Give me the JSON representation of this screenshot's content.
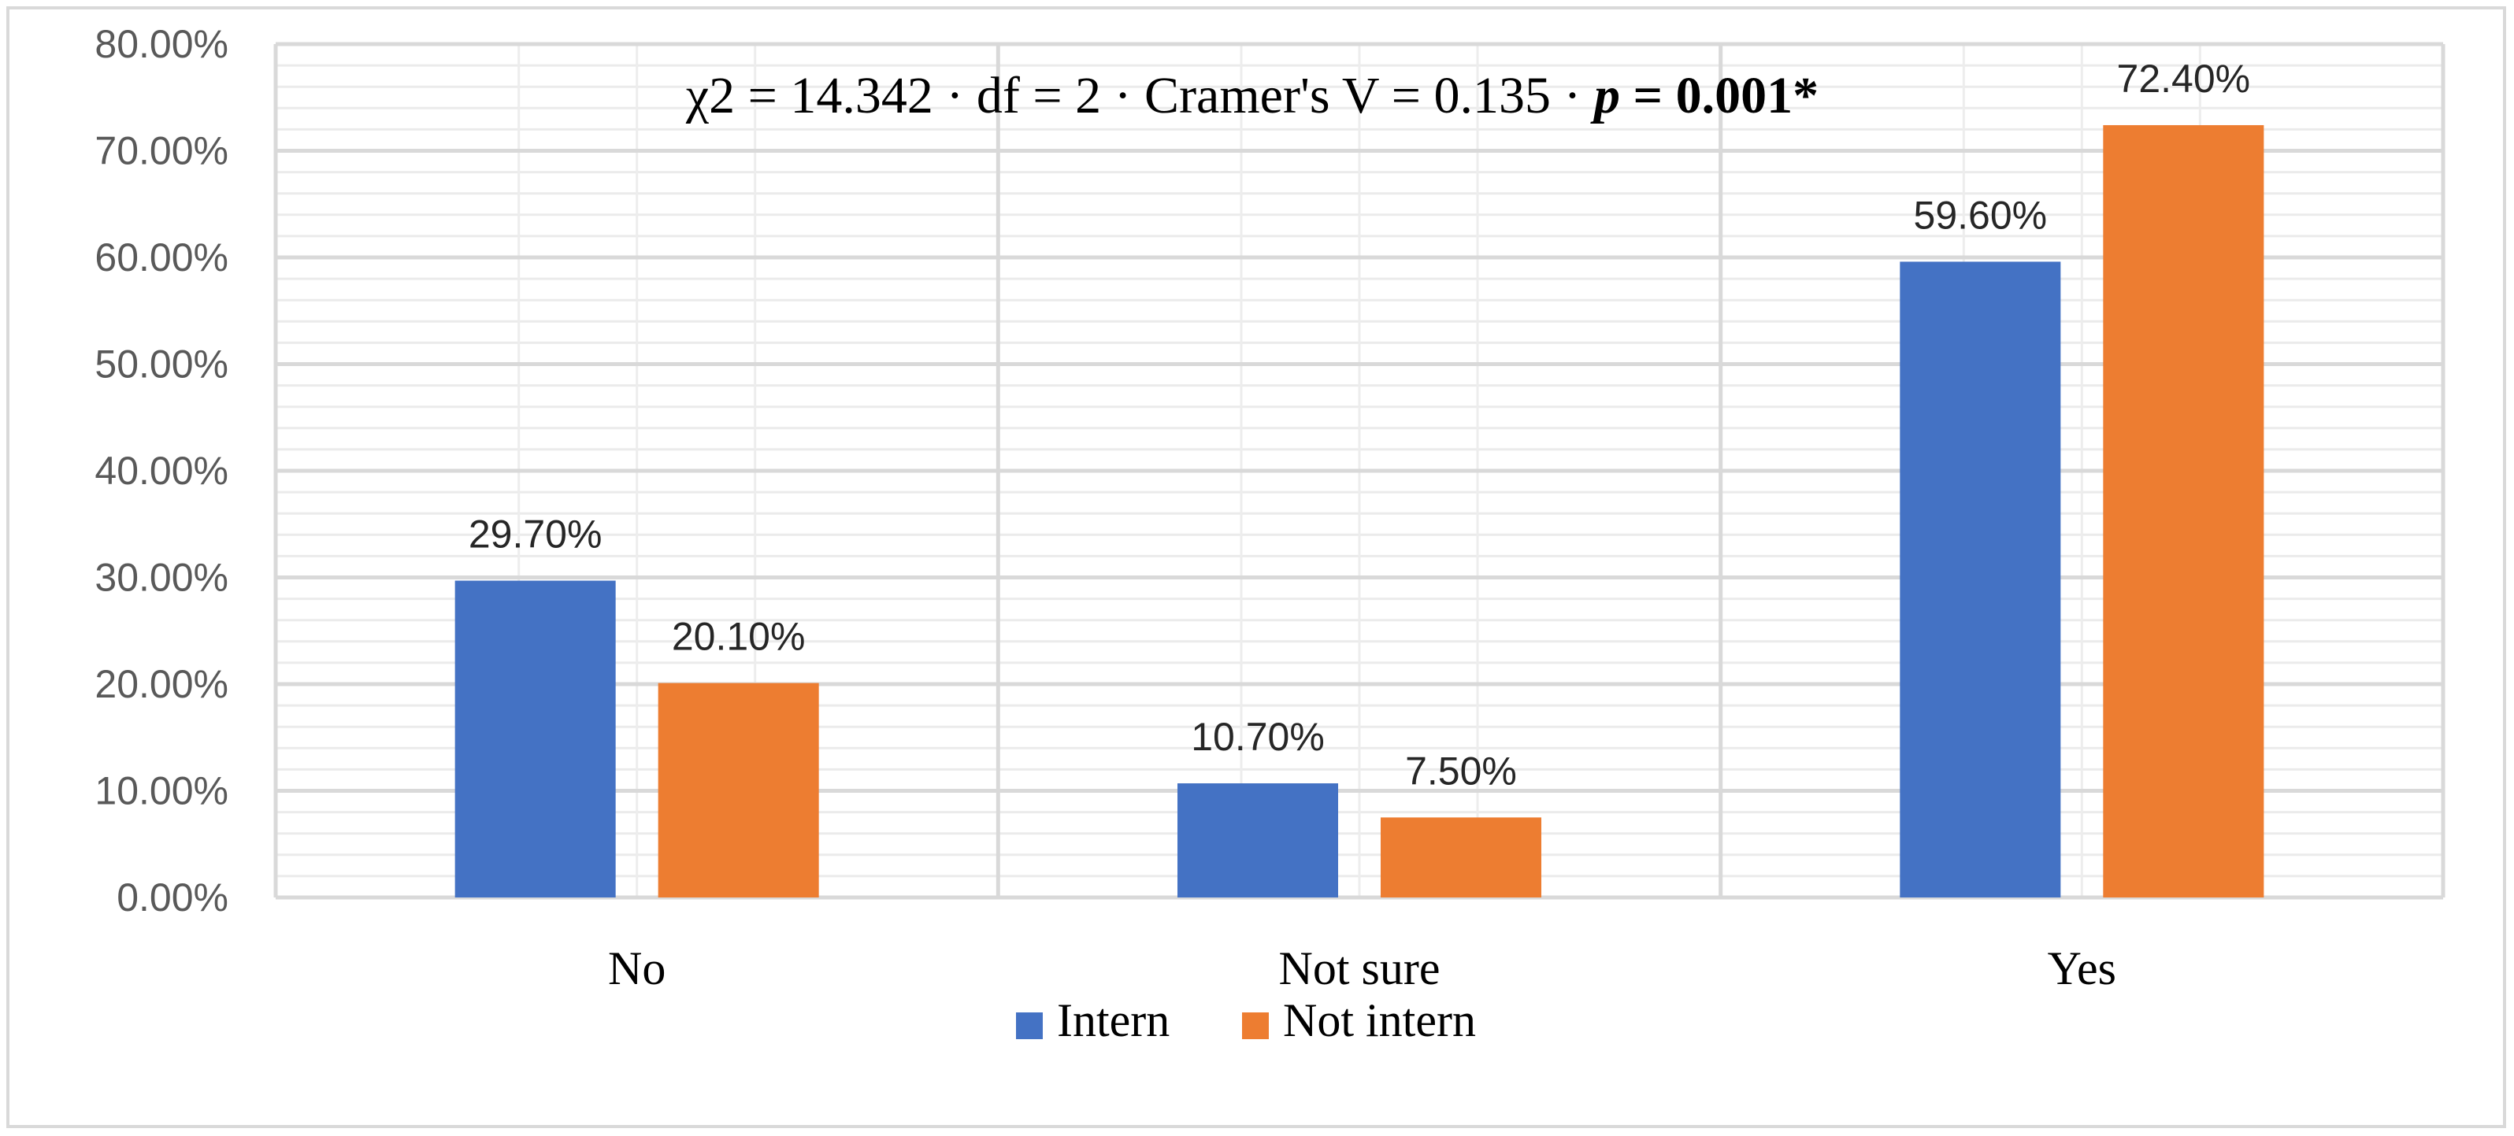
{
  "chart_data": {
    "type": "bar",
    "categories": [
      "No",
      "Not sure",
      "Yes"
    ],
    "series": [
      {
        "name": "Intern",
        "color": "#4472c4",
        "values": [
          29.7,
          10.7,
          59.6
        ],
        "labels": [
          "29.70%",
          "10.70%",
          "59.60%"
        ]
      },
      {
        "name": "Not intern",
        "color": "#ed7d31",
        "values": [
          20.1,
          7.5,
          72.4
        ],
        "labels": [
          "20.10%",
          "7.50%",
          "72.40%"
        ]
      }
    ],
    "ylim": [
      0,
      80
    ],
    "yticks": [
      0,
      10,
      20,
      30,
      40,
      50,
      60,
      70,
      80
    ],
    "ytick_labels": [
      "0.00%",
      "10.00%",
      "20.00%",
      "30.00%",
      "40.00%",
      "50.00%",
      "60.00%",
      "70.00%",
      "80.00%"
    ],
    "annotation": {
      "chi_label": "χ2 = 14.342 · df = 2 · Cramer's V = 0.135 · ",
      "p_symbol": "p",
      "p_value": " = 0.001*"
    },
    "legend_position": "bottom",
    "grid": true
  }
}
